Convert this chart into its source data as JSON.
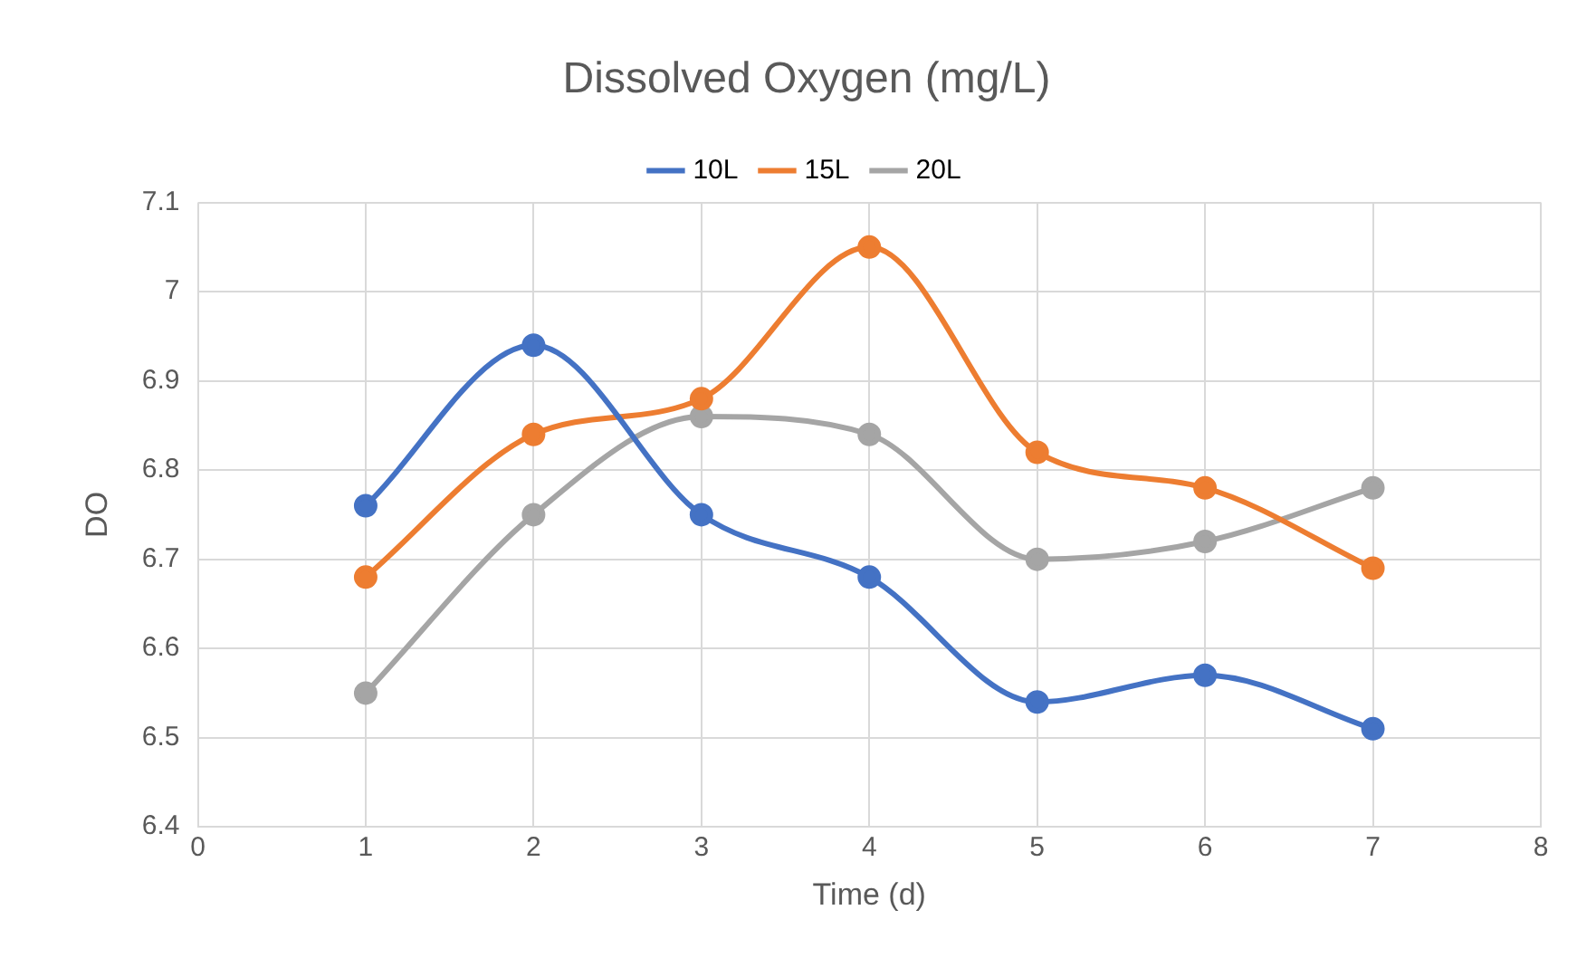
{
  "chart_data": {
    "type": "line",
    "title": "Dissolved Oxygen (mg/L)",
    "xlabel": "Time (d)",
    "ylabel": "DO",
    "x": [
      1,
      2,
      3,
      4,
      5,
      6,
      7
    ],
    "series": [
      {
        "name": "10L",
        "color": "#4472c4",
        "values": [
          6.76,
          6.94,
          6.75,
          6.68,
          6.54,
          6.57,
          6.51
        ]
      },
      {
        "name": "15L",
        "color": "#ed7d31",
        "values": [
          6.68,
          6.84,
          6.88,
          7.05,
          6.82,
          6.78,
          6.69
        ]
      },
      {
        "name": "20L",
        "color": "#a5a5a5",
        "values": [
          6.55,
          6.75,
          6.86,
          6.84,
          6.7,
          6.72,
          6.78
        ]
      }
    ],
    "xlim": [
      0,
      8
    ],
    "xticks": [
      0,
      1,
      2,
      3,
      4,
      5,
      6,
      7,
      8
    ],
    "ylim": [
      6.4,
      7.1
    ],
    "yticks": [
      6.4,
      6.5,
      6.6,
      6.7,
      6.8,
      6.9,
      7,
      7.1
    ],
    "grid": true,
    "legend": "top",
    "marker": "circle",
    "line_style": "solid"
  }
}
